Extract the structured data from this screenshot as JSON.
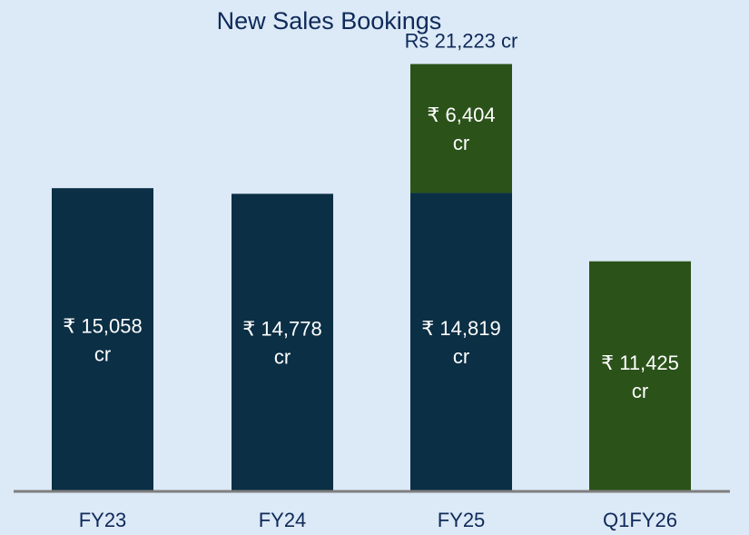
{
  "chart_data": {
    "type": "bar",
    "stacked": true,
    "title": "New Sales Bookings",
    "categories": [
      "FY23",
      "FY24",
      "FY25",
      "Q1FY26"
    ],
    "series": [
      {
        "values": [
          15058,
          14778,
          14819,
          0
        ],
        "labels": [
          "₹ 15,058\ncr",
          "₹ 14,778\ncr",
          "₹ 14,819\ncr",
          ""
        ]
      },
      {
        "values": [
          0,
          0,
          6404,
          11425
        ],
        "labels": [
          "",
          "",
          "₹ 6,404\ncr",
          "₹ 11,425\ncr"
        ]
      }
    ],
    "totals": [
      "",
      "",
      "Rs 21,223 cr",
      ""
    ],
    "ylim": [
      0,
      23500
    ],
    "grid": false,
    "colors": {
      "dark": "#0b2f45",
      "green": "#2b5219",
      "axis": "#7f7f7f",
      "label": "#ffffff",
      "text": "#0e2a5a",
      "background": "#dce9f6"
    }
  }
}
